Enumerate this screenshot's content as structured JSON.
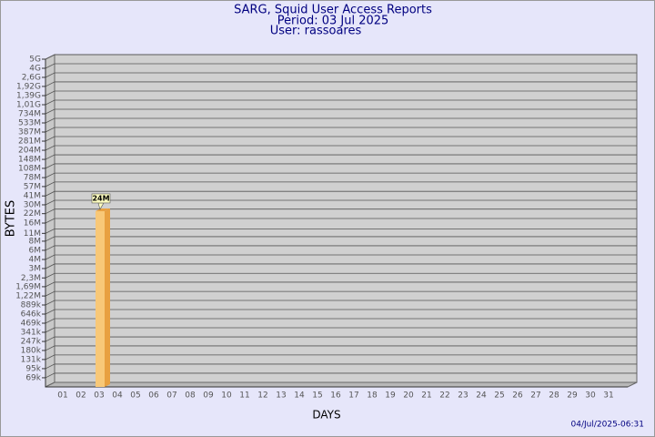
{
  "chart_data": {
    "type": "bar",
    "title": "SARG, Squid User Access Reports",
    "subtitle": [
      "Period: 03 Jul 2025",
      "User: rassoares"
    ],
    "ylabel": "BYTES",
    "xlabel": "DAYS",
    "timestamp": "04/Jul/2025-06:31",
    "categories": [
      "01",
      "02",
      "03",
      "04",
      "05",
      "06",
      "07",
      "08",
      "09",
      "10",
      "11",
      "12",
      "13",
      "14",
      "15",
      "16",
      "17",
      "18",
      "19",
      "20",
      "21",
      "22",
      "23",
      "24",
      "25",
      "26",
      "27",
      "28",
      "29",
      "30",
      "31"
    ],
    "values": [
      null,
      null,
      24000000,
      null,
      null,
      null,
      null,
      null,
      null,
      null,
      null,
      null,
      null,
      null,
      null,
      null,
      null,
      null,
      null,
      null,
      null,
      null,
      null,
      null,
      null,
      null,
      null,
      null,
      null,
      null,
      null
    ],
    "value_labels": [
      null,
      null,
      "24M",
      null,
      null,
      null,
      null,
      null,
      null,
      null,
      null,
      null,
      null,
      null,
      null,
      null,
      null,
      null,
      null,
      null,
      null,
      null,
      null,
      null,
      null,
      null,
      null,
      null,
      null,
      null,
      null
    ],
    "color": "#f8c878",
    "side_color": "#e8a040",
    "log_scale": true,
    "grid": true,
    "ylim": [
      50000,
      5000000000
    ],
    "yticks": [
      {
        "value": 69000,
        "label": "69k"
      },
      {
        "value": 95000,
        "label": "95k"
      },
      {
        "value": 131000,
        "label": "131k"
      },
      {
        "value": 180000,
        "label": "180k"
      },
      {
        "value": 247000,
        "label": "247k"
      },
      {
        "value": 341000,
        "label": "341k"
      },
      {
        "value": 469000,
        "label": "469k"
      },
      {
        "value": 646000,
        "label": "646k"
      },
      {
        "value": 889000,
        "label": "889k"
      },
      {
        "value": 1220000,
        "label": "1,22M"
      },
      {
        "value": 1690000,
        "label": "1,69M"
      },
      {
        "value": 2300000,
        "label": "2,3M"
      },
      {
        "value": 3200000,
        "label": "3M"
      },
      {
        "value": 4400000,
        "label": "4M"
      },
      {
        "value": 6070000,
        "label": "6M"
      },
      {
        "value": 8360000,
        "label": "8M"
      },
      {
        "value": 11000000,
        "label": "11M"
      },
      {
        "value": 15800000,
        "label": "16M"
      },
      {
        "value": 22000000,
        "label": "22M"
      },
      {
        "value": 30000000,
        "label": "30M"
      },
      {
        "value": 41000000,
        "label": "41M"
      },
      {
        "value": 57000000,
        "label": "57M"
      },
      {
        "value": 78000000,
        "label": "78M"
      },
      {
        "value": 108000000,
        "label": "108M"
      },
      {
        "value": 148000000,
        "label": "148M"
      },
      {
        "value": 204000000,
        "label": "204M"
      },
      {
        "value": 281000000,
        "label": "281M"
      },
      {
        "value": 387000000,
        "label": "387M"
      },
      {
        "value": 533000000,
        "label": "533M"
      },
      {
        "value": 734000000,
        "label": "734M"
      },
      {
        "value": 1010000000,
        "label": "1,01G"
      },
      {
        "value": 1390000000,
        "label": "1,39G"
      },
      {
        "value": 1920000000,
        "label": "1,92G"
      },
      {
        "value": 2640000000,
        "label": "2,6G"
      },
      {
        "value": 3630000000,
        "label": "4G"
      },
      {
        "value": 5000000000,
        "label": "5G"
      }
    ]
  }
}
